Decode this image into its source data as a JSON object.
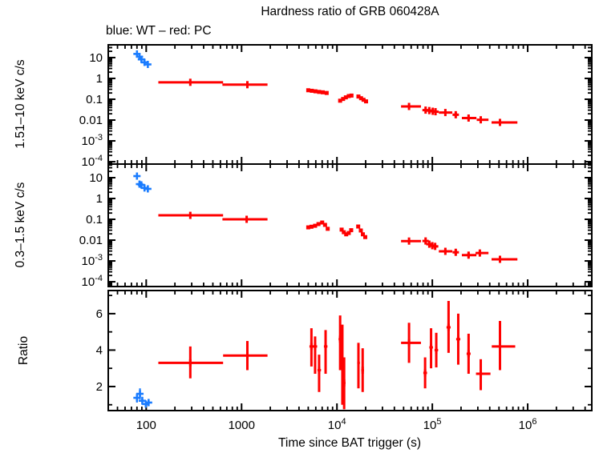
{
  "title": "Hardness ratio of GRB 060428A",
  "subtitle": "blue: WT – red: PC",
  "xlabel": "Time since BAT trigger (s)",
  "colors": {
    "wt_blue": "#1a7cff",
    "pc_red": "#ff0000",
    "axis": "#000000",
    "background": "#ffffff"
  },
  "legend": {
    "wt_label": "WT",
    "pc_label": "PC"
  },
  "chart_data": {
    "type": "scatter",
    "x_axis": {
      "scale": "log",
      "lim": [
        40,
        4700000
      ],
      "ticks": [
        {
          "t": 100,
          "main": "100"
        },
        {
          "t": 1000,
          "main": "1000"
        },
        {
          "t": 10000,
          "main": "10",
          "sup": "4"
        },
        {
          "t": 100000,
          "main": "10",
          "sup": "5"
        },
        {
          "t": 1000000,
          "main": "10",
          "sup": "6"
        }
      ]
    },
    "panels": [
      {
        "name": "hard",
        "ylabel": "1.51–10 keV c/s",
        "yscale": "log",
        "ylim": [
          7.7e-05,
          41
        ],
        "yticks": [
          {
            "v": 10,
            "main": "10"
          },
          {
            "v": 1,
            "main": "1"
          },
          {
            "v": 0.1,
            "main": "0.1"
          },
          {
            "v": 0.01,
            "main": "0.01"
          },
          {
            "v": 0.001,
            "main": "10",
            "sup": "-3"
          },
          {
            "v": 0.0001,
            "main": "10",
            "sup": "-4"
          }
        ],
        "series": [
          {
            "name": "WT",
            "color_key": "wt_blue",
            "marker": "plus",
            "points": [
              [
                80,
                null,
                null,
                15,
                13,
                17
              ],
              [
                85,
                null,
                null,
                11,
                9.5,
                12.5
              ],
              [
                89,
                null,
                null,
                8.2,
                7.0,
                9.5
              ],
              [
                96,
                null,
                null,
                5.9,
                5.0,
                6.9
              ],
              [
                104,
                null,
                null,
                4.7,
                4.0,
                5.5
              ]
            ]
          },
          {
            "name": "PC",
            "color_key": "pc_red",
            "marker": "bin",
            "points": [
              [
                290,
                134,
                640,
                0.65,
                0.59,
                0.71
              ],
              [
                1150,
                630,
                1870,
                0.5,
                0.45,
                0.56
              ],
              [
                5000,
                null,
                null,
                0.27,
                null,
                null
              ],
              [
                5450,
                null,
                null,
                0.255,
                null,
                null
              ],
              [
                5950,
                null,
                null,
                0.24,
                null,
                null
              ],
              [
                6500,
                null,
                null,
                0.225,
                null,
                null
              ],
              [
                7100,
                null,
                null,
                0.215,
                null,
                null
              ],
              [
                7800,
                null,
                null,
                0.2,
                null,
                null
              ],
              [
                10800,
                null,
                null,
                0.085,
                null,
                null
              ],
              [
                11600,
                null,
                null,
                0.103,
                null,
                null
              ],
              [
                12400,
                null,
                null,
                0.123,
                null,
                null
              ],
              [
                13300,
                null,
                null,
                0.142,
                null,
                null
              ],
              [
                14200,
                null,
                null,
                0.15,
                null,
                null
              ],
              [
                16800,
                null,
                null,
                0.135,
                null,
                null
              ],
              [
                17900,
                null,
                null,
                0.112,
                null,
                null
              ],
              [
                19000,
                null,
                null,
                0.094,
                null,
                null
              ],
              [
                20200,
                null,
                null,
                0.079,
                null,
                null
              ],
              [
                57000,
                47000,
                76000,
                0.045,
                0.0405,
                0.05
              ],
              [
                85000,
                null,
                null,
                0.03,
                0.027,
                0.0335
              ],
              [
                93000,
                null,
                null,
                0.0285,
                0.0255,
                0.0315
              ],
              [
                101000,
                null,
                null,
                0.0265,
                0.024,
                0.0295
              ],
              [
                108000,
                null,
                null,
                0.0252,
                0.0225,
                0.028
              ],
              [
                137000,
                117000,
                162000,
                0.023,
                0.0205,
                0.0258
              ],
              [
                176000,
                null,
                null,
                0.018,
                0.015,
                0.0216
              ],
              [
                240000,
                204000,
                290000,
                0.0125,
                0.0107,
                0.0146
              ],
              [
                322000,
                292000,
                388000,
                0.0103,
                0.009,
                0.0118
              ],
              [
                512000,
                418000,
                780000,
                0.0077,
                0.0064,
                0.0093
              ]
            ]
          }
        ]
      },
      {
        "name": "soft",
        "ylabel": "0.3–1.5 keV c/s",
        "yscale": "log",
        "ylim": [
          5.9e-05,
          45
        ],
        "yticks": [
          {
            "v": 10,
            "main": "10"
          },
          {
            "v": 1,
            "main": "1"
          },
          {
            "v": 0.1,
            "main": "0.1"
          },
          {
            "v": 0.01,
            "main": "0.01"
          },
          {
            "v": 0.001,
            "main": "10",
            "sup": "-3"
          },
          {
            "v": 0.0001,
            "main": "10",
            "sup": "-4"
          }
        ],
        "series": [
          {
            "name": "WT",
            "color_key": "wt_blue",
            "marker": "plus",
            "points": [
              [
                80,
                null,
                null,
                11.9,
                10.2,
                13.8
              ],
              [
                85,
                null,
                null,
                4.9,
                4.2,
                5.7
              ],
              [
                89,
                null,
                null,
                4.5,
                3.9,
                5.2
              ],
              [
                96,
                null,
                null,
                3.2,
                2.75,
                3.7
              ],
              [
                104,
                null,
                null,
                2.9,
                2.5,
                3.4
              ]
            ]
          },
          {
            "name": "PC",
            "color_key": "pc_red",
            "marker": "bin",
            "points": [
              [
                290,
                134,
                640,
                0.155,
                0.14,
                0.17
              ],
              [
                1130,
                630,
                1870,
                0.1,
                0.089,
                0.112
              ],
              [
                5000,
                null,
                null,
                0.041,
                null,
                null
              ],
              [
                5400,
                null,
                null,
                0.044,
                null,
                null
              ],
              [
                5900,
                null,
                null,
                0.049,
                null,
                null
              ],
              [
                6400,
                null,
                null,
                0.059,
                null,
                null
              ],
              [
                7000,
                null,
                null,
                0.07,
                null,
                null
              ],
              [
                7500,
                null,
                null,
                0.054,
                null,
                null
              ],
              [
                8000,
                null,
                null,
                0.035,
                null,
                null
              ],
              [
                11200,
                null,
                null,
                0.032,
                null,
                null
              ],
              [
                11800,
                null,
                null,
                0.024,
                null,
                null
              ],
              [
                12500,
                null,
                null,
                0.019,
                null,
                null
              ],
              [
                13300,
                null,
                null,
                0.022,
                null,
                null
              ],
              [
                14100,
                null,
                null,
                0.03,
                null,
                null
              ],
              [
                16700,
                null,
                null,
                0.045,
                null,
                null
              ],
              [
                17800,
                null,
                null,
                0.029,
                null,
                null
              ],
              [
                18700,
                null,
                null,
                0.019,
                null,
                null
              ],
              [
                19800,
                null,
                null,
                0.014,
                null,
                null
              ],
              [
                57000,
                47000,
                76000,
                0.009,
                0.0079,
                0.0103
              ],
              [
                85000,
                null,
                null,
                0.0091,
                0.008,
                0.0104
              ],
              [
                93000,
                null,
                null,
                0.0064,
                0.0055,
                0.0074
              ],
              [
                100000,
                null,
                null,
                0.0054,
                0.0046,
                0.0063
              ],
              [
                107000,
                null,
                null,
                0.005,
                0.0042,
                0.0059
              ],
              [
                137000,
                117000,
                162000,
                0.0029,
                0.0024,
                0.0035
              ],
              [
                176000,
                null,
                null,
                0.0026,
                0.002,
                0.0033
              ],
              [
                240000,
                204000,
                290000,
                0.0019,
                0.0015,
                0.0024
              ],
              [
                315000,
                284000,
                388000,
                0.0024,
                0.0019,
                0.003
              ],
              [
                512000,
                418000,
                780000,
                0.0012,
                0.00086,
                0.0017
              ]
            ]
          }
        ]
      },
      {
        "name": "ratio",
        "ylabel": "Ratio",
        "yscale": "linear",
        "ylim": [
          0.68,
          7.27
        ],
        "yticks": [
          {
            "v": 2,
            "main": "2"
          },
          {
            "v": 4,
            "main": "4"
          },
          {
            "v": 6,
            "main": "6"
          }
        ],
        "series": [
          {
            "name": "WT",
            "color_key": "wt_blue",
            "marker": "plus",
            "points": [
              [
                80,
                null,
                null,
                1.38,
                1.12,
                1.64
              ],
              [
                86,
                null,
                null,
                1.6,
                1.3,
                1.9
              ],
              [
                91,
                null,
                null,
                1.22,
                1.0,
                1.44
              ],
              [
                99,
                null,
                null,
                1.04,
                0.86,
                1.22
              ],
              [
                106,
                null,
                null,
                1.12,
                0.92,
                1.32
              ]
            ]
          },
          {
            "name": "PC",
            "color_key": "pc_red",
            "marker": "bin",
            "points": [
              [
                290,
                134,
                640,
                3.3,
                2.45,
                4.2
              ],
              [
                1150,
                640,
                1870,
                3.7,
                2.9,
                4.5
              ],
              [
                5400,
                5150,
                5700,
                4.2,
                3.1,
                5.2
              ],
              [
                5900,
                5650,
                6200,
                4.2,
                2.7,
                4.75
              ],
              [
                6500,
                6250,
                6800,
                2.9,
                1.7,
                3.75
              ],
              [
                7600,
                7300,
                7950,
                4.2,
                2.7,
                5.1
              ],
              [
                10800,
                10400,
                11200,
                4.6,
                2.9,
                5.9
              ],
              [
                11400,
                11000,
                11800,
                3.3,
                1.0,
                5.4
              ],
              [
                11900,
                11500,
                12300,
                2.2,
                0.75,
                3.6
              ],
              [
                16800,
                16300,
                17400,
                3.3,
                1.9,
                4.4
              ],
              [
                18600,
                18000,
                19200,
                2.9,
                1.7,
                4.1
              ],
              [
                57000,
                47000,
                76000,
                4.4,
                3.3,
                5.5
              ],
              [
                84000,
                80500,
                88000,
                2.75,
                1.9,
                3.6
              ],
              [
                97000,
                93000,
                101500,
                4.15,
                3.0,
                5.2
              ],
              [
                110000,
                105500,
                115000,
                4.0,
                3.05,
                4.95
              ],
              [
                148000,
                141000,
                155500,
                5.25,
                3.85,
                6.7
              ],
              [
                187000,
                178000,
                196500,
                4.6,
                3.2,
                6.0
              ],
              [
                240000,
                229000,
                252000,
                3.8,
                2.7,
                4.9
              ],
              [
                322000,
                287000,
                407000,
                2.7,
                1.8,
                3.5
              ],
              [
                512000,
                420000,
                740000,
                4.2,
                2.9,
                5.6
              ]
            ]
          }
        ]
      }
    ]
  }
}
